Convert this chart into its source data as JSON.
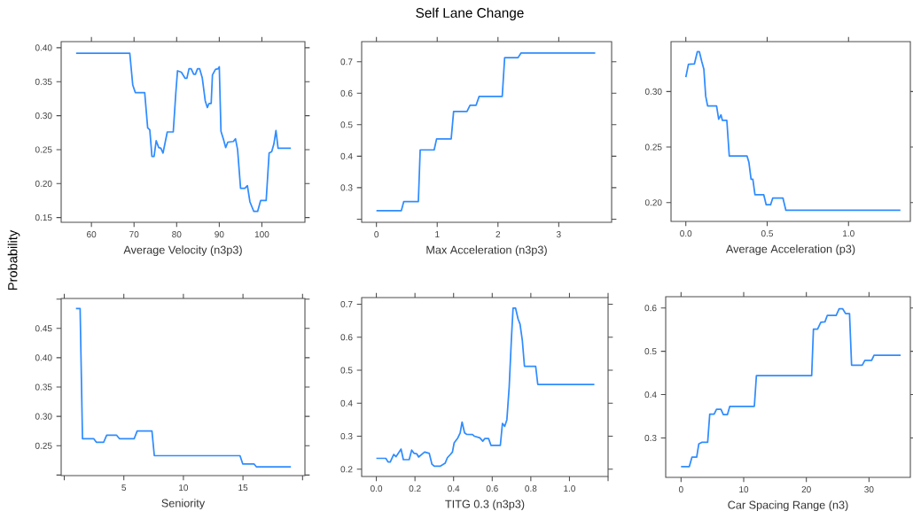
{
  "chart_data": [
    {
      "type": "line",
      "ylabel": "Probability",
      "xlabel": "Average Velocity (n3p3)",
      "color": "#2f8cff",
      "xlim": [
        52.9,
        110.1
      ],
      "ylim": [
        0.143,
        0.409
      ],
      "xticks": [
        60,
        70,
        80,
        90,
        100
      ],
      "yticks": [
        0.15,
        {
          "value": 0.2,
          "label": "0.20"
        },
        0.25,
        {
          "value": 0.3,
          "label": "0.30"
        },
        0.35,
        {
          "value": 0.4,
          "label": "0.40"
        }
      ],
      "x": [
        56.4,
        69.0,
        69.7,
        70.3,
        72.5,
        73.2,
        73.7,
        74.2,
        74.7,
        75.2,
        75.8,
        76.3,
        76.8,
        77.8,
        79.2,
        79.8,
        80.2,
        81.1,
        82.0,
        82.4,
        82.9,
        83.4,
        84.0,
        84.4,
        84.9,
        85.4,
        86.0,
        86.7,
        87.2,
        87.6,
        88.1,
        88.4,
        89.1,
        89.7,
        90.0,
        90.4,
        91.0,
        91.5,
        92.0,
        93.3,
        93.8,
        94.3,
        95.0,
        96.0,
        96.6,
        97.2,
        98.1,
        99.0,
        99.7,
        101.0,
        101.7,
        102.3,
        102.8,
        103.3,
        103.8,
        106.8
      ],
      "values": [
        0.392,
        0.392,
        0.345,
        0.334,
        0.334,
        0.282,
        0.279,
        0.24,
        0.24,
        0.263,
        0.253,
        0.252,
        0.245,
        0.276,
        0.276,
        0.333,
        0.366,
        0.364,
        0.355,
        0.355,
        0.369,
        0.369,
        0.361,
        0.361,
        0.369,
        0.369,
        0.356,
        0.322,
        0.312,
        0.318,
        0.318,
        0.36,
        0.368,
        0.369,
        0.372,
        0.277,
        0.265,
        0.253,
        0.261,
        0.262,
        0.266,
        0.25,
        0.193,
        0.193,
        0.197,
        0.173,
        0.159,
        0.159,
        0.175,
        0.175,
        0.245,
        0.247,
        0.258,
        0.278,
        0.252,
        0.252
      ]
    },
    {
      "type": "line",
      "title": "Self Lane Change",
      "xlabel": "Max Acceleration (n3p3)",
      "color": "#2f8cff",
      "xlim": [
        -0.243,
        3.87
      ],
      "ylim": [
        0.19,
        0.764
      ],
      "xticks": [
        0,
        1,
        2,
        3
      ],
      "yticks": [
        {
          "value": 0.2,
          "label": null
        },
        0.3,
        0.4,
        0.5,
        0.6,
        0.7
      ],
      "x": [
        0,
        0.41,
        0.45,
        0.69,
        0.72,
        0.95,
        0.99,
        1.23,
        1.27,
        1.49,
        1.54,
        1.64,
        1.69,
        2.07,
        2.11,
        2.33,
        2.38,
        3.6
      ],
      "values": [
        0.227,
        0.227,
        0.256,
        0.256,
        0.42,
        0.42,
        0.455,
        0.455,
        0.542,
        0.542,
        0.562,
        0.562,
        0.59,
        0.59,
        0.713,
        0.713,
        0.728,
        0.728
      ]
    },
    {
      "type": "line",
      "xlabel": "Average Acceleration (p3)",
      "color": "#2f8cff",
      "xlim": [
        -0.091,
        1.38
      ],
      "ylim": [
        0.183,
        0.345
      ],
      "xticks": [
        {
          "value": 0,
          "label": "0.0"
        },
        0.5,
        {
          "value": 1,
          "label": "1.0"
        }
      ],
      "yticks": [
        {
          "value": 0.2,
          "label": "0.20"
        },
        0.25,
        {
          "value": 0.3,
          "label": "0.30"
        }
      ],
      "x": [
        0,
        0.016,
        0.053,
        0.071,
        0.083,
        0.098,
        0.111,
        0.122,
        0.134,
        0.189,
        0.202,
        0.216,
        0.225,
        0.252,
        0.267,
        0.376,
        0.388,
        0.401,
        0.412,
        0.425,
        0.479,
        0.494,
        0.521,
        0.534,
        0.597,
        0.615,
        1.319
      ],
      "values": [
        0.313,
        0.3245,
        0.325,
        0.336,
        0.336,
        0.327,
        0.32,
        0.296,
        0.287,
        0.287,
        0.275,
        0.279,
        0.274,
        0.274,
        0.242,
        0.242,
        0.236,
        0.221,
        0.221,
        0.207,
        0.207,
        0.198,
        0.198,
        0.204,
        0.204,
        0.193,
        0.193
      ]
    },
    {
      "type": "line",
      "xlabel": "Seniority",
      "color": "#2f8cff",
      "xlim": [
        -0.26,
        20.2
      ],
      "ylim": [
        0.199,
        0.501
      ],
      "xticks": [
        {
          "value": 0,
          "label": null
        },
        5,
        10,
        15,
        {
          "value": 20,
          "label": null
        }
      ],
      "yticks": [
        {
          "value": 0.2,
          "label": null
        },
        0.25,
        {
          "value": 0.3,
          "label": "0.30"
        },
        0.35,
        {
          "value": 0.4,
          "label": "0.40"
        },
        0.45,
        {
          "value": 0.5,
          "label": null
        }
      ],
      "x": [
        0.98,
        1.33,
        1.53,
        2.47,
        2.69,
        3.31,
        3.56,
        4.38,
        4.63,
        5.87,
        6.12,
        7.36,
        7.56,
        14.75,
        14.98,
        15.92,
        16.12,
        19.02
      ],
      "values": [
        0.484,
        0.484,
        0.262,
        0.262,
        0.256,
        0.256,
        0.268,
        0.268,
        0.262,
        0.262,
        0.275,
        0.275,
        0.233,
        0.233,
        0.219,
        0.219,
        0.214,
        0.214
      ]
    },
    {
      "type": "line",
      "xlabel": "TITG 0.3 (n3p3)",
      "color": "#2f8cff",
      "xlim": [
        -0.076,
        1.2
      ],
      "ylim": [
        0.178,
        0.72
      ],
      "xticks": [
        {
          "value": 0,
          "label": "0.0"
        },
        0.2,
        0.4,
        0.6,
        0.8,
        {
          "value": 1,
          "label": "1.0"
        },
        {
          "value": 1.2,
          "label": null
        }
      ],
      "yticks": [
        0.2,
        0.3,
        0.4,
        0.5,
        0.6,
        0.7
      ],
      "x": [
        0,
        0.049,
        0.061,
        0.072,
        0.09,
        0.102,
        0.11,
        0.128,
        0.14,
        0.17,
        0.183,
        0.196,
        0.209,
        0.219,
        0.25,
        0.274,
        0.288,
        0.3,
        0.33,
        0.356,
        0.368,
        0.384,
        0.394,
        0.403,
        0.422,
        0.434,
        0.444,
        0.457,
        0.467,
        0.498,
        0.508,
        0.536,
        0.551,
        0.562,
        0.581,
        0.594,
        0.642,
        0.653,
        0.665,
        0.676,
        0.688,
        0.699,
        0.708,
        0.721,
        0.734,
        0.744,
        0.756,
        0.767,
        0.825,
        0.836,
        1.129
      ],
      "values": [
        0.233,
        0.233,
        0.222,
        0.222,
        0.245,
        0.238,
        0.245,
        0.261,
        0.229,
        0.229,
        0.258,
        0.248,
        0.247,
        0.237,
        0.252,
        0.248,
        0.215,
        0.209,
        0.209,
        0.218,
        0.235,
        0.245,
        0.252,
        0.28,
        0.295,
        0.31,
        0.343,
        0.31,
        0.306,
        0.305,
        0.3,
        0.295,
        0.285,
        0.293,
        0.293,
        0.272,
        0.272,
        0.339,
        0.33,
        0.35,
        0.45,
        0.59,
        0.688,
        0.688,
        0.655,
        0.64,
        0.59,
        0.512,
        0.512,
        0.457,
        0.457
      ]
    },
    {
      "type": "line",
      "xlabel": "Car Spacing Range (n3)",
      "color": "#2f8cff",
      "xlim": [
        -2.45,
        36.6
      ],
      "ylim": [
        0.209,
        0.626
      ],
      "xticks": [
        0,
        10,
        20,
        30
      ],
      "yticks": [
        0.3,
        0.4,
        0.5,
        0.6
      ],
      "x": [
        0,
        1.32,
        1.75,
        2.5,
        2.83,
        3.3,
        4.25,
        4.58,
        5.28,
        5.66,
        6.37,
        6.75,
        7.41,
        7.78,
        11.7,
        12.03,
        20.85,
        21.13,
        21.79,
        22.31,
        22.97,
        23.35,
        24.76,
        25.24,
        25.8,
        26.27,
        26.89,
        27.22,
        28.92,
        29.34,
        30.42,
        30.8,
        35.05
      ],
      "values": [
        0.234,
        0.234,
        0.256,
        0.256,
        0.286,
        0.29,
        0.29,
        0.355,
        0.355,
        0.366,
        0.366,
        0.354,
        0.354,
        0.373,
        0.373,
        0.444,
        0.444,
        0.551,
        0.551,
        0.567,
        0.568,
        0.583,
        0.583,
        0.598,
        0.598,
        0.587,
        0.587,
        0.468,
        0.468,
        0.479,
        0.479,
        0.491,
        0.491
      ]
    }
  ]
}
